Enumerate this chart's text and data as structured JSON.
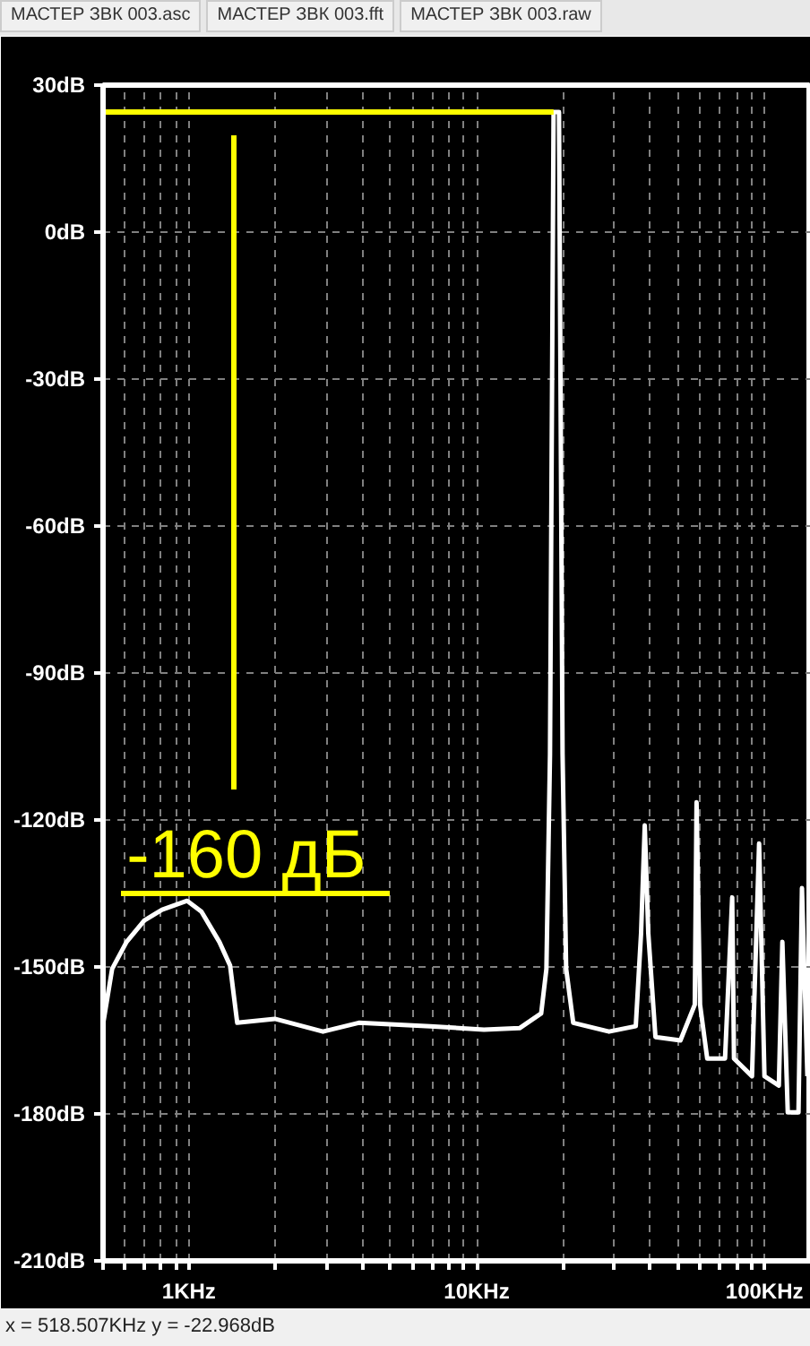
{
  "chart_data": {
    "type": "line",
    "annotations": [
      "-160 дБ",
      "МАСТЕР ЗВК 003.asc",
      "МАСТЕР ЗВК 003.fft",
      "МАСТЕР ЗВК 003.raw",
      "x = 518.507KHz    y = -22.968dB"
    ],
    "log": "x",
    "grid": true,
    "xlim": [
      0.503,
      145
    ],
    "ylim": [
      -210,
      30
    ],
    "xticks": [
      {
        "value": 0.503,
        "label": null
      },
      {
        "value": 0.6,
        "label": null
      },
      {
        "value": 0.7,
        "label": null
      },
      {
        "value": 0.8,
        "label": null
      },
      {
        "value": 0.9,
        "label": null
      },
      {
        "value": 1,
        "label": "1KHz"
      },
      {
        "value": 2,
        "label": null
      },
      {
        "value": 3,
        "label": null
      },
      {
        "value": 4,
        "label": null
      },
      {
        "value": 5,
        "label": null
      },
      {
        "value": 6,
        "label": null
      },
      {
        "value": 7,
        "label": null
      },
      {
        "value": 8,
        "label": null
      },
      {
        "value": 9,
        "label": null
      },
      {
        "value": 10,
        "label": "10KHz"
      },
      {
        "value": 20,
        "label": null
      },
      {
        "value": 30,
        "label": null
      },
      {
        "value": 40,
        "label": null
      },
      {
        "value": 50,
        "label": null
      },
      {
        "value": 60,
        "label": null
      },
      {
        "value": 70,
        "label": null
      },
      {
        "value": 80,
        "label": null
      },
      {
        "value": 90,
        "label": null
      },
      {
        "value": 100,
        "label": "100KHz"
      }
    ],
    "yticks": [
      {
        "value": 30,
        "label": "30dB"
      },
      {
        "value": 0,
        "label": "0dB"
      },
      {
        "value": -30,
        "label": "-30dB"
      },
      {
        "value": -60,
        "label": "-60dB"
      },
      {
        "value": -90,
        "label": "-90dB"
      },
      {
        "value": -120,
        "label": "-120dB"
      },
      {
        "value": -150,
        "label": "-150dB"
      },
      {
        "value": -180,
        "label": "-180dB"
      },
      {
        "value": -210,
        "label": "-210dB"
      }
    ],
    "ref_lines": [
      {
        "axis": "y",
        "value": 24.5,
        "label": null,
        "color": "#ffff00"
      }
    ],
    "series": [
      {
        "color": "#ffffff",
        "x": [
          0.504,
          0.541,
          0.607,
          0.7,
          0.807,
          0.986,
          1.105,
          1.276,
          1.39,
          1.472,
          1.988,
          2.923,
          3.892,
          6.898,
          10.6,
          14.09,
          16.75,
          17.47,
          17.98,
          18.5,
          19.32,
          19.88,
          20.46,
          21.65,
          28.83,
          35.71,
          37.26,
          38.37,
          39.47,
          41.8,
          51.05,
          57.26,
          58.08,
          59.73,
          63.25,
          72.95,
          77.25,
          78.36,
          90.51,
          95.8,
          100,
          112.2,
          115.4,
          120.5,
          131.3,
          135,
          141
        ],
        "values": [
          -161.4,
          -150.4,
          -144.9,
          -140.5,
          -138.3,
          -136.5,
          -138.7,
          -144.9,
          -149.7,
          -161.4,
          -160.6,
          -163.2,
          -161.4,
          -162.1,
          -162.8,
          -162.5,
          -159.5,
          -150.4,
          -106.5,
          24.5,
          24.5,
          -106.5,
          -150.4,
          -161.4,
          -163.2,
          -162.1,
          -143.1,
          -121.1,
          -143.1,
          -164.3,
          -165,
          -157.7,
          -116.4,
          -157.7,
          -168.7,
          -168.7,
          -135.8,
          -168.7,
          -172.3,
          -124.8,
          -172.3,
          -174.2,
          -144.9,
          -179.7,
          -179.7,
          -133.9,
          -172.3
        ]
      }
    ]
  }
}
